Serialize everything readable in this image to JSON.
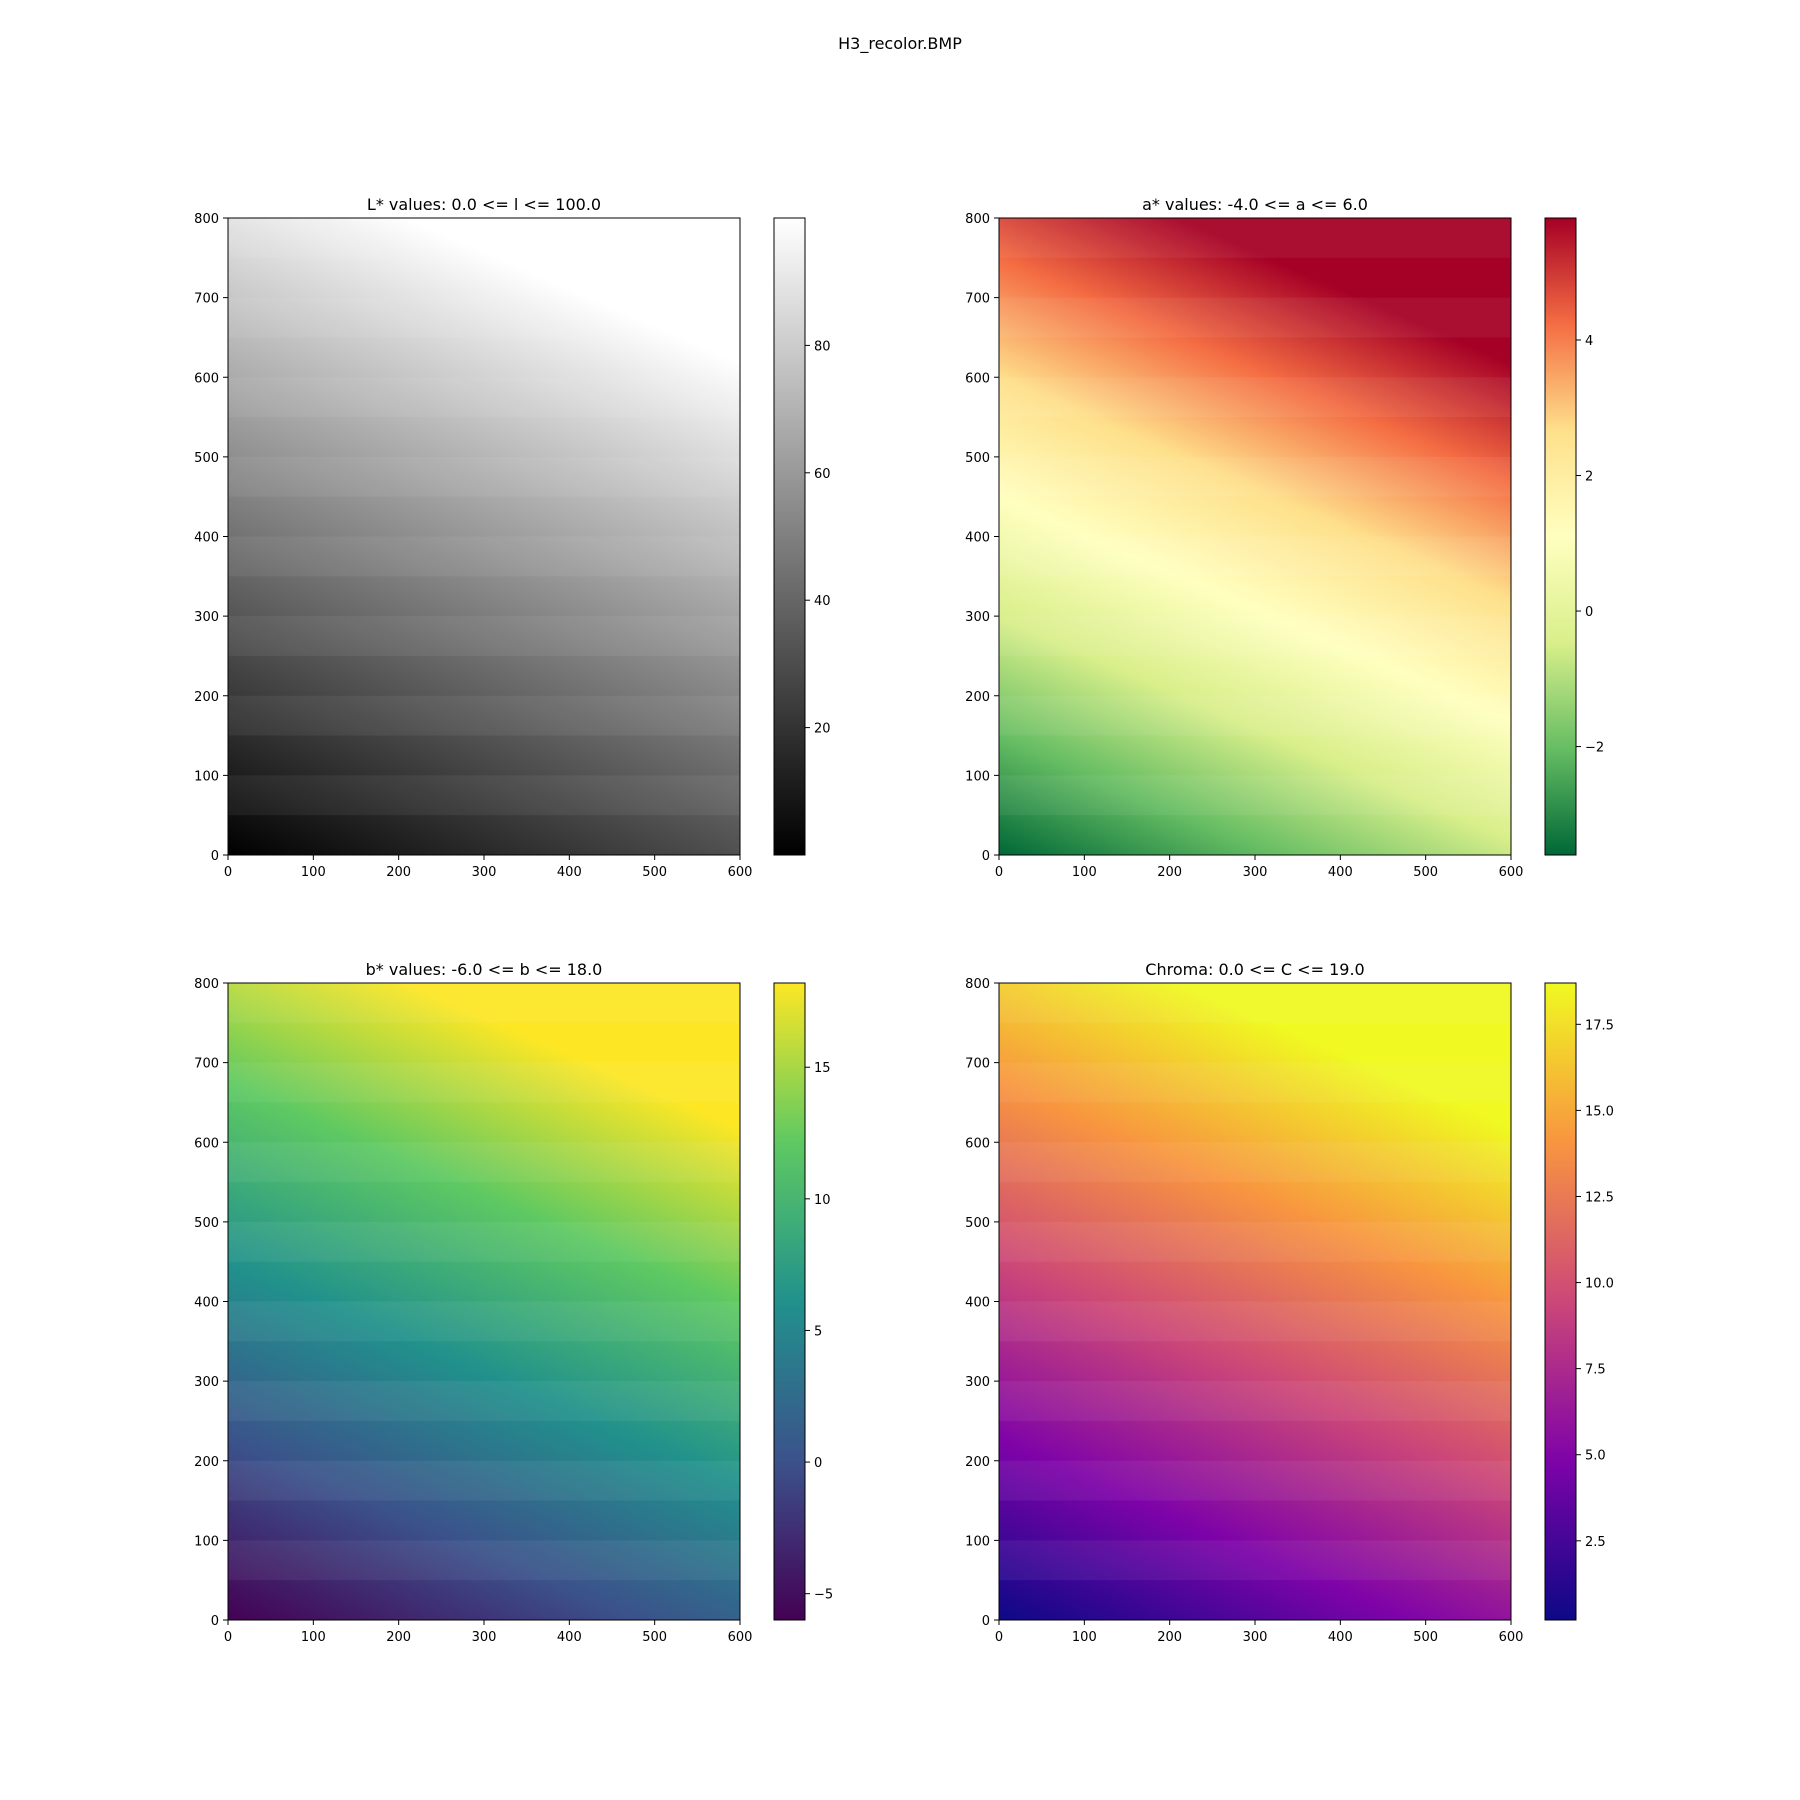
{
  "figure": {
    "suptitle": "H3_recolor.BMP"
  },
  "chart_data": [
    {
      "type": "heatmap",
      "title": "L* values: 0.0 <= l <= 100.0",
      "xlim": [
        0,
        600
      ],
      "ylim": [
        0,
        800
      ],
      "xticks": [
        0,
        100,
        200,
        300,
        400,
        500,
        600
      ],
      "yticks": [
        0,
        100,
        200,
        300,
        400,
        500,
        600,
        700,
        800
      ],
      "colormap": "gray",
      "colorbar": {
        "min": 0,
        "max": 100,
        "ticks": [
          20,
          40,
          60,
          80
        ],
        "tick_labels": [
          "20",
          "40",
          "60",
          "80"
        ]
      },
      "colors": [
        "#000000",
        "#ffffff"
      ]
    },
    {
      "type": "heatmap",
      "title": "a* values: -4.0 <= a <= 6.0",
      "xlim": [
        0,
        600
      ],
      "ylim": [
        0,
        800
      ],
      "xticks": [
        0,
        100,
        200,
        300,
        400,
        500,
        600
      ],
      "yticks": [
        0,
        100,
        200,
        300,
        400,
        500,
        600,
        700,
        800
      ],
      "colormap": "RdYlGn_r",
      "colorbar": {
        "min": -3.6,
        "max": 5.8,
        "ticks": [
          -2,
          0,
          2,
          4
        ],
        "tick_labels": [
          "−2",
          "0",
          "2",
          "4"
        ]
      },
      "colors": [
        "#006837",
        "#66bd63",
        "#d9ef8b",
        "#ffffbf",
        "#fee08b",
        "#f46d43",
        "#a50026"
      ]
    },
    {
      "type": "heatmap",
      "title": "b* values: -6.0 <= b <= 18.0",
      "xlim": [
        0,
        600
      ],
      "ylim": [
        0,
        800
      ],
      "xticks": [
        0,
        100,
        200,
        300,
        400,
        500,
        600
      ],
      "yticks": [
        0,
        100,
        200,
        300,
        400,
        500,
        600,
        700,
        800
      ],
      "colormap": "viridis",
      "colorbar": {
        "min": -6.0,
        "max": 18.2,
        "ticks": [
          -5,
          0,
          5,
          10,
          15
        ],
        "tick_labels": [
          "−5",
          "0",
          "5",
          "10",
          "15"
        ]
      },
      "colors": [
        "#440154",
        "#3b528b",
        "#21918c",
        "#5ec962",
        "#fde725"
      ]
    },
    {
      "type": "heatmap",
      "title": "Chroma: 0.0 <= C <= 19.0",
      "xlim": [
        0,
        600
      ],
      "ylim": [
        0,
        800
      ],
      "xticks": [
        0,
        100,
        200,
        300,
        400,
        500,
        600
      ],
      "yticks": [
        0,
        100,
        200,
        300,
        400,
        500,
        600,
        700,
        800
      ],
      "colormap": "plasma",
      "colorbar": {
        "min": 0.2,
        "max": 18.7,
        "ticks": [
          2.5,
          5.0,
          7.5,
          10.0,
          12.5,
          15.0,
          17.5
        ],
        "tick_labels": [
          "2.5",
          "5.0",
          "7.5",
          "10.0",
          "12.5",
          "15.0",
          "17.5"
        ]
      },
      "colors": [
        "#0d0887",
        "#7e03a8",
        "#cc4778",
        "#f89540",
        "#f0f921"
      ]
    }
  ]
}
